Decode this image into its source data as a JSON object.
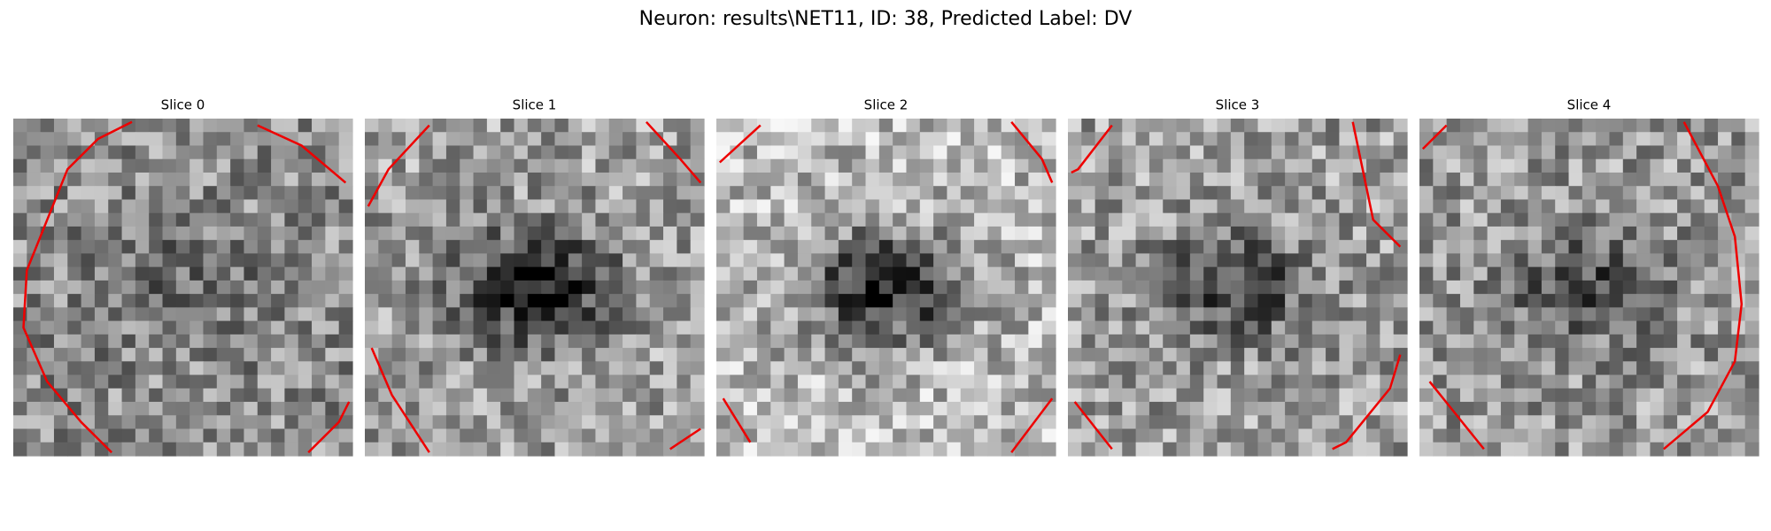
{
  "title": "Neuron: results\\NET11, ID: 38, Predicted Label: DV",
  "panels": [
    {
      "title": "Slice 0"
    },
    {
      "title": "Slice 1"
    },
    {
      "title": "Slice 2"
    },
    {
      "title": "Slice 3"
    },
    {
      "title": "Slice 4"
    }
  ]
}
